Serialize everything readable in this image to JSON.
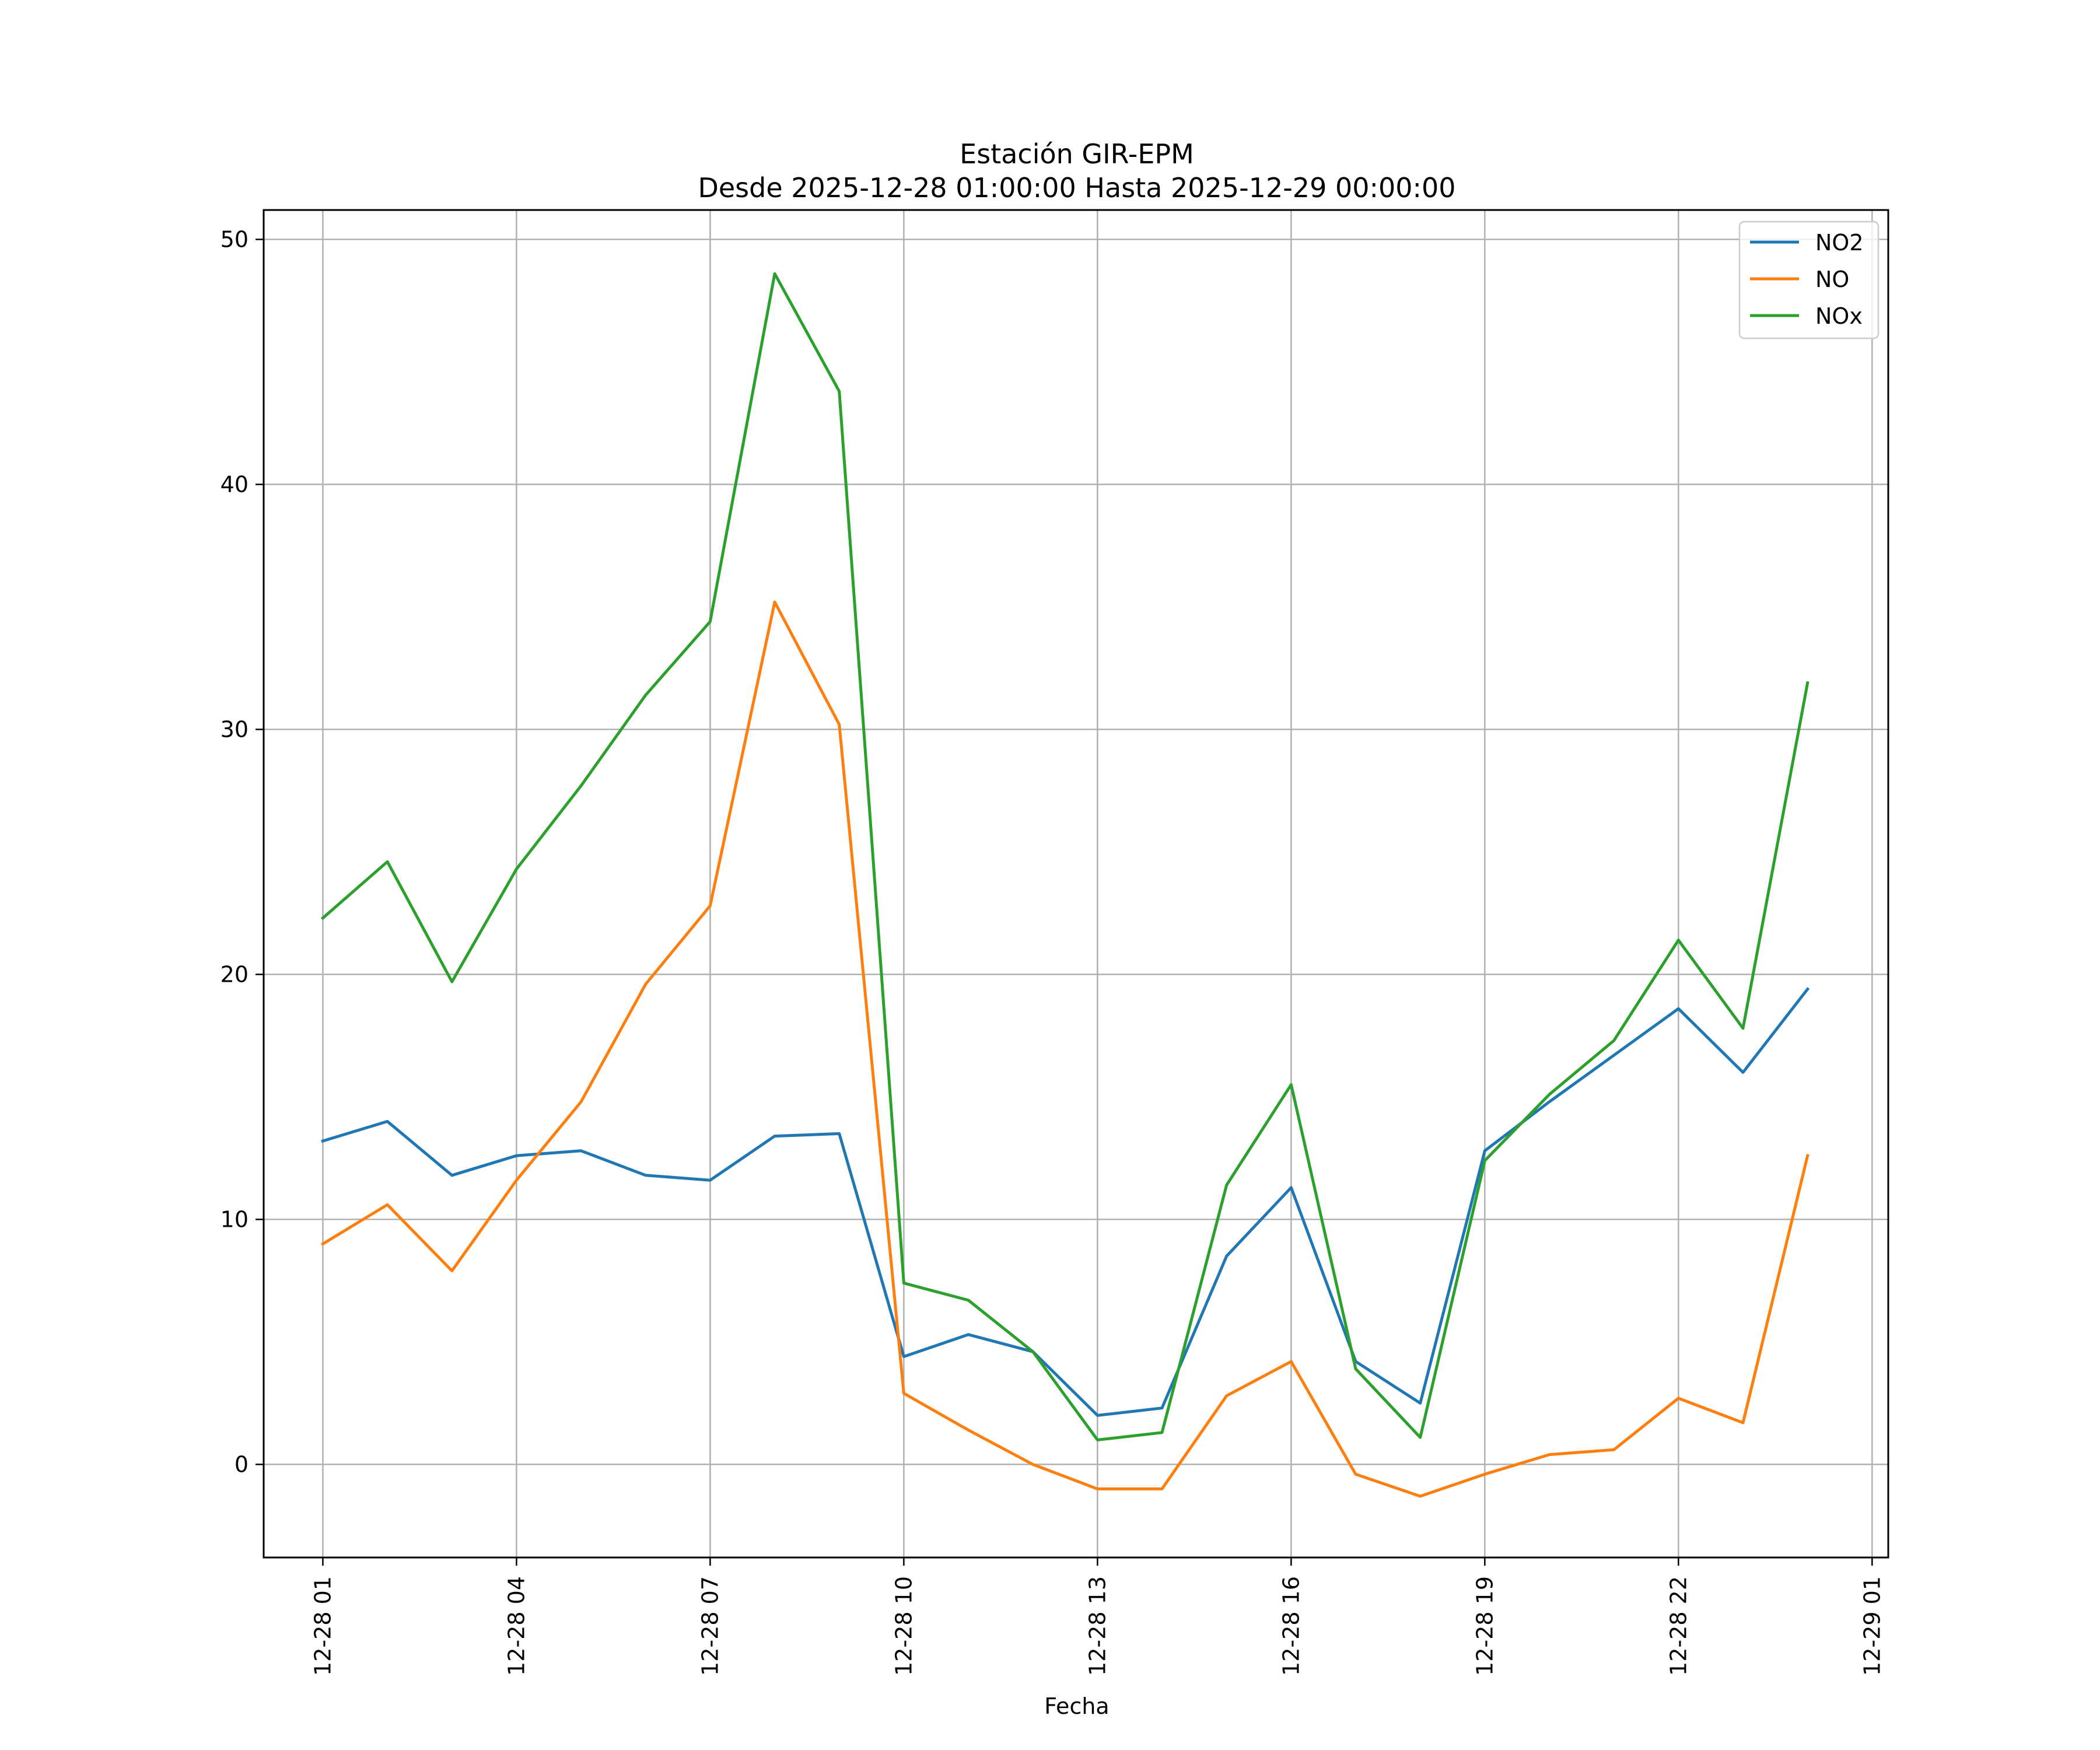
{
  "chart_data": {
    "type": "line",
    "title": [
      "Estación GIR-EPM",
      "Desde 2025-12-28 01:00:00 Hasta 2025-12-29 00:00:00"
    ],
    "xlabel": "Fecha",
    "ylabel": "",
    "x": [
      "2025-12-28 01:00",
      "2025-12-28 02:00",
      "2025-12-28 03:00",
      "2025-12-28 04:00",
      "2025-12-28 05:00",
      "2025-12-28 06:00",
      "2025-12-28 07:00",
      "2025-12-28 08:00",
      "2025-12-28 09:00",
      "2025-12-28 10:00",
      "2025-12-28 11:00",
      "2025-12-28 12:00",
      "2025-12-28 13:00",
      "2025-12-28 14:00",
      "2025-12-28 15:00",
      "2025-12-28 16:00",
      "2025-12-28 17:00",
      "2025-12-28 18:00",
      "2025-12-28 19:00",
      "2025-12-28 20:00",
      "2025-12-28 21:00",
      "2025-12-28 22:00",
      "2025-12-28 23:00",
      "2025-12-29 00:00"
    ],
    "xlim": [
      "2025-12-28 00:05",
      "2025-12-29 01:15"
    ],
    "x_ticks": [
      "2025-12-28 01:00",
      "2025-12-28 04:00",
      "2025-12-28 07:00",
      "2025-12-28 10:00",
      "2025-12-28 13:00",
      "2025-12-28 16:00",
      "2025-12-28 19:00",
      "2025-12-28 22:00",
      "2025-12-29 01:00"
    ],
    "x_tick_labels": [
      "12-28 01",
      "12-28 04",
      "12-28 07",
      "12-28 10",
      "12-28 13",
      "12-28 16",
      "12-28 19",
      "12-28 22",
      "12-29 01"
    ],
    "ylim": [
      -3.8,
      51.2
    ],
    "y_ticks": [
      0,
      10,
      20,
      30,
      40,
      50
    ],
    "y_tick_labels": [
      "0",
      "10",
      "20",
      "30",
      "40",
      "50"
    ],
    "grid": true,
    "legend_position": "top-right",
    "series": [
      {
        "name": "NO2",
        "color": "#1f77b4",
        "values": [
          13.2,
          14.0,
          11.8,
          12.6,
          12.8,
          11.8,
          11.6,
          13.4,
          13.5,
          4.4,
          5.3,
          4.6,
          2.0,
          2.3,
          8.5,
          11.3,
          4.2,
          2.5,
          12.8,
          14.8,
          16.7,
          18.6,
          16.0,
          19.4
        ]
      },
      {
        "name": "NO",
        "color": "#ff7f0e",
        "values": [
          9.0,
          10.6,
          7.9,
          11.6,
          14.8,
          19.6,
          22.8,
          35.2,
          30.2,
          2.9,
          1.4,
          0.0,
          -1.0,
          -1.0,
          2.8,
          4.2,
          -0.4,
          -1.3,
          -0.4,
          0.4,
          0.6,
          2.7,
          1.7,
          12.6
        ]
      },
      {
        "name": "NOx",
        "color": "#2ca02c",
        "values": [
          22.3,
          24.6,
          19.7,
          24.3,
          27.7,
          31.4,
          34.4,
          48.6,
          43.8,
          7.4,
          6.7,
          4.6,
          1.0,
          1.3,
          11.4,
          15.5,
          3.9,
          1.1,
          12.4,
          15.1,
          17.3,
          21.4,
          17.8,
          31.9
        ]
      }
    ]
  }
}
